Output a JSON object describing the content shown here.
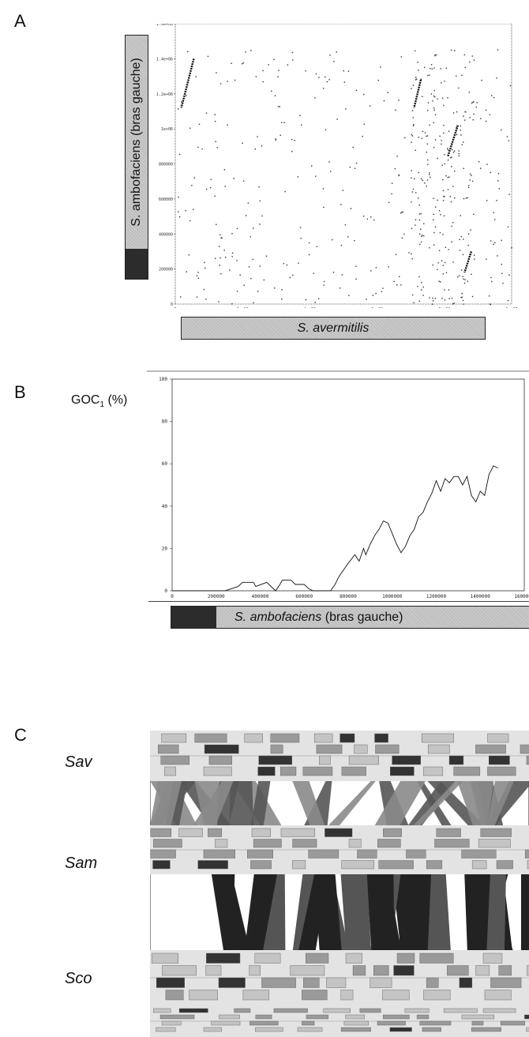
{
  "panels": {
    "a": {
      "letter": "A"
    },
    "b": {
      "letter": "B"
    },
    "c": {
      "letter": "C"
    }
  },
  "chart_data": [
    {
      "type": "scatter",
      "panel": "A",
      "xlabel": "S. avermitilis",
      "ylabel": "S. ambofaciens (bras gauche)",
      "x_ticks": [
        "0",
        "2e+06",
        "4e+06",
        "6e+06",
        "8e+06",
        "1e+07"
      ],
      "y_ticks": [
        "0",
        "200000",
        "400000",
        "600000",
        "800000",
        "1e+06",
        "1.2e+06",
        "1.4e+06",
        "1.6e+06"
      ],
      "xlim": [
        0,
        10000000
      ],
      "ylim": [
        0,
        1600000
      ],
      "diagonal_segments": [
        {
          "x0": 550000,
          "y0": 1400000,
          "x1": 180000,
          "y1": 1120000
        },
        {
          "x0": 7300000,
          "y0": 1280000,
          "x1": 7100000,
          "y1": 1120000
        },
        {
          "x0": 8400000,
          "y0": 1020000,
          "x1": 8100000,
          "y1": 840000
        },
        {
          "x0": 8800000,
          "y0": 300000,
          "x1": 8600000,
          "y1": 180000
        }
      ]
    },
    {
      "type": "line",
      "panel": "B",
      "ylabel": "GOC",
      "ylabel_sub": "1",
      "ylabel_unit": "(%)",
      "xlabel_prefix": "S. ambofaciens",
      "xlabel_suffix": "(bras gauche)",
      "x_ticks": [
        "0",
        "200000",
        "400000",
        "600000",
        "800000",
        "1000000",
        "1200000",
        "1400000",
        "1600000"
      ],
      "y_ticks": [
        "0",
        "20",
        "40",
        "60",
        "80",
        "100"
      ],
      "xlim": [
        0,
        1600000
      ],
      "ylim": [
        0,
        100
      ],
      "x": [
        0,
        240000,
        300000,
        320000,
        370000,
        380000,
        430000,
        440000,
        470000,
        490000,
        500000,
        540000,
        560000,
        600000,
        620000,
        640000,
        670000,
        700000,
        720000,
        740000,
        760000,
        780000,
        800000,
        830000,
        850000,
        870000,
        880000,
        900000,
        920000,
        940000,
        960000,
        980000,
        1000000,
        1020000,
        1040000,
        1060000,
        1080000,
        1100000,
        1120000,
        1140000,
        1160000,
        1180000,
        1200000,
        1220000,
        1240000,
        1260000,
        1280000,
        1300000,
        1320000,
        1340000,
        1360000,
        1380000,
        1400000,
        1420000,
        1440000,
        1460000,
        1480000
      ],
      "y": [
        0,
        0,
        2,
        4,
        4,
        2,
        4,
        3,
        0,
        3,
        5,
        5,
        3,
        3,
        1,
        0,
        0,
        0,
        0,
        3,
        7,
        10,
        13,
        17,
        14,
        20,
        17,
        22,
        26,
        29,
        33,
        32,
        27,
        22,
        18,
        21,
        26,
        29,
        35,
        37,
        42,
        46,
        52,
        47,
        53,
        51,
        54,
        54,
        50,
        54,
        45,
        42,
        47,
        45,
        55,
        59,
        58
      ]
    }
  ],
  "panel_c": {
    "species": [
      "Sav",
      "Sam",
      "Sco"
    ]
  }
}
